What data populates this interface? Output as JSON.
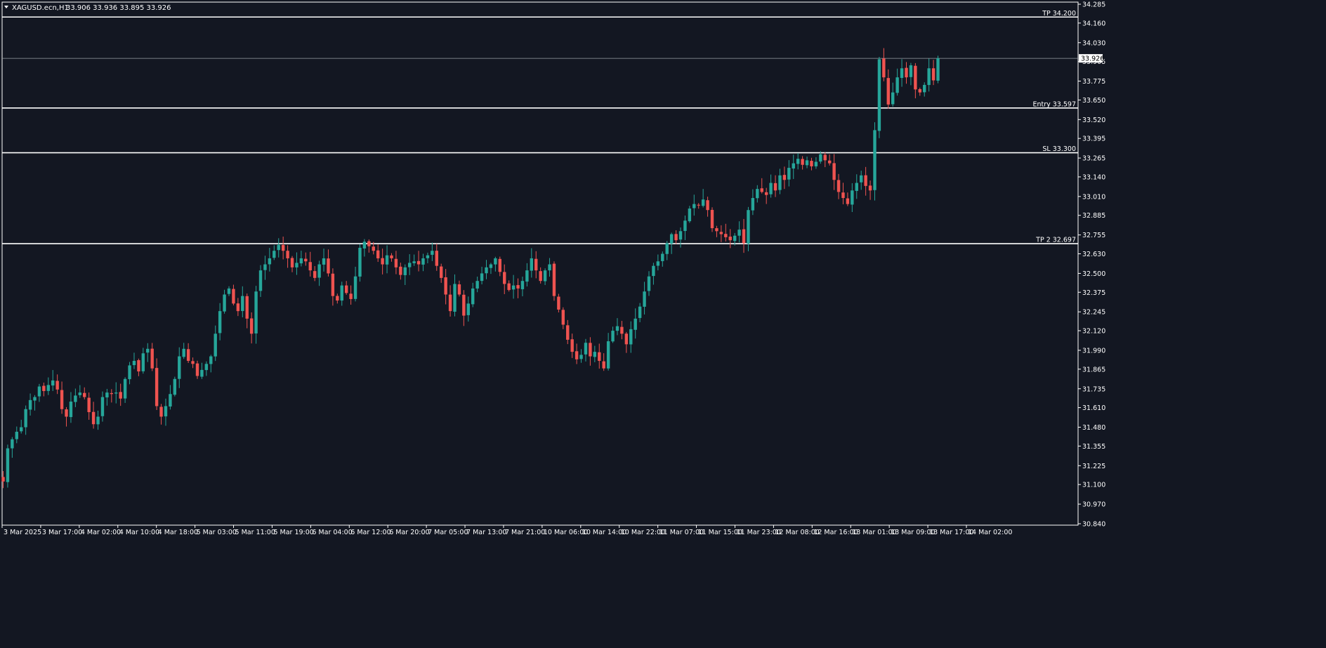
{
  "window": {
    "title": "XAGUSD.ecn,H1",
    "ohlc": "33.906 33.936 33.895 33.926"
  },
  "colors": {
    "background": "#131722",
    "bull": "#26a69a",
    "bear": "#ef5350",
    "levels": "#ffffff",
    "text": "#ffffff"
  },
  "chart_data": {
    "type": "candlestick",
    "symbol": "XAGUSD.ecn",
    "timeframe": "H1",
    "ylim": [
      30.84,
      34.285
    ],
    "y_ticks": [
      "34.285",
      "34.160",
      "34.030",
      "33.905",
      "33.775",
      "33.650",
      "33.520",
      "33.395",
      "33.265",
      "33.140",
      "33.010",
      "32.885",
      "32.755",
      "32.630",
      "32.500",
      "32.375",
      "32.245",
      "32.120",
      "31.990",
      "31.865",
      "31.735",
      "31.610",
      "31.480",
      "31.355",
      "31.225",
      "31.100",
      "30.970",
      "30.840"
    ],
    "x_ticks": [
      "3 Mar 2025",
      "3 Mar 17:00",
      "4 Mar 02:00",
      "4 Mar 10:00",
      "4 Mar 18:00",
      "5 Mar 03:00",
      "5 Mar 11:00",
      "5 Mar 19:00",
      "6 Mar 04:00",
      "6 Mar 12:00",
      "6 Mar 20:00",
      "7 Mar 05:00",
      "7 Mar 13:00",
      "7 Mar 21:00",
      "10 Mar 06:00",
      "10 Mar 14:00",
      "10 Mar 22:00",
      "11 Mar 07:00",
      "11 Mar 15:00",
      "11 Mar 23:00",
      "12 Mar 08:00",
      "12 Mar 16:00",
      "13 Mar 01:00",
      "13 Mar 09:00",
      "13 Mar 17:00",
      "14 Mar 02:00"
    ],
    "current_price": "33.926",
    "levels": [
      {
        "label": "TP 34.200",
        "value": 34.2
      },
      {
        "label": "Entry 33.597",
        "value": 33.597
      },
      {
        "label": "SL 33.300",
        "value": 33.3
      },
      {
        "label": "TP 2 32.697",
        "value": 32.697
      }
    ],
    "closes": [
      31.12,
      31.34,
      31.4,
      31.45,
      31.48,
      31.6,
      31.66,
      31.68,
      31.75,
      31.72,
      31.76,
      31.79,
      31.73,
      31.6,
      31.55,
      31.65,
      31.69,
      31.71,
      31.68,
      31.58,
      31.5,
      31.55,
      31.68,
      31.71,
      31.7,
      31.71,
      31.67,
      31.8,
      31.89,
      31.92,
      31.85,
      31.97,
      32.0,
      31.87,
      31.62,
      31.55,
      31.62,
      31.7,
      31.8,
      31.95,
      32.0,
      31.92,
      31.9,
      31.82,
      31.86,
      31.9,
      31.95,
      32.1,
      32.25,
      32.36,
      32.4,
      32.3,
      32.25,
      32.35,
      32.2,
      32.1,
      32.38,
      32.52,
      32.56,
      32.6,
      32.65,
      32.69,
      32.65,
      32.6,
      32.54,
      32.57,
      32.6,
      32.58,
      32.52,
      32.47,
      32.56,
      32.6,
      32.5,
      32.35,
      32.32,
      32.42,
      32.37,
      32.33,
      32.48,
      32.67,
      32.71,
      32.68,
      32.65,
      32.6,
      32.56,
      32.62,
      32.6,
      32.54,
      32.49,
      32.54,
      32.57,
      32.58,
      32.56,
      32.6,
      32.62,
      32.65,
      32.55,
      32.47,
      32.36,
      32.25,
      32.43,
      32.36,
      32.22,
      32.3,
      32.4,
      32.45,
      32.5,
      32.54,
      32.56,
      32.6,
      32.51,
      32.43,
      32.39,
      32.42,
      32.4,
      32.45,
      32.52,
      32.6,
      32.52,
      32.45,
      32.52,
      32.56,
      32.35,
      32.26,
      32.16,
      32.06,
      31.98,
      31.93,
      31.96,
      32.04,
      31.95,
      31.98,
      31.92,
      31.87,
      32.05,
      32.12,
      32.15,
      32.1,
      32.03,
      32.13,
      32.2,
      32.28,
      32.38,
      32.48,
      32.55,
      32.58,
      32.63,
      32.7,
      32.76,
      32.72,
      32.78,
      32.85,
      32.93,
      32.96,
      32.95,
      32.99,
      32.92,
      32.8,
      32.78,
      32.76,
      32.74,
      32.72,
      32.75,
      32.79,
      32.7,
      32.92,
      33.0,
      33.06,
      33.04,
      33.02,
      33.1,
      33.05,
      33.15,
      33.12,
      33.2,
      33.23,
      33.26,
      33.22,
      33.25,
      33.21,
      33.24,
      33.29,
      33.25,
      33.23,
      33.12,
      33.04,
      33.0,
      32.96,
      33.05,
      33.1,
      33.15,
      33.08,
      33.05,
      33.45,
      33.92,
      33.8,
      33.62,
      33.7,
      33.8,
      33.86,
      33.8,
      33.88,
      33.72,
      33.7,
      33.75,
      33.86,
      33.78,
      33.926
    ],
    "candle_ranges": {
      "note": "highs/lows follow each candle with small wicks"
    }
  }
}
